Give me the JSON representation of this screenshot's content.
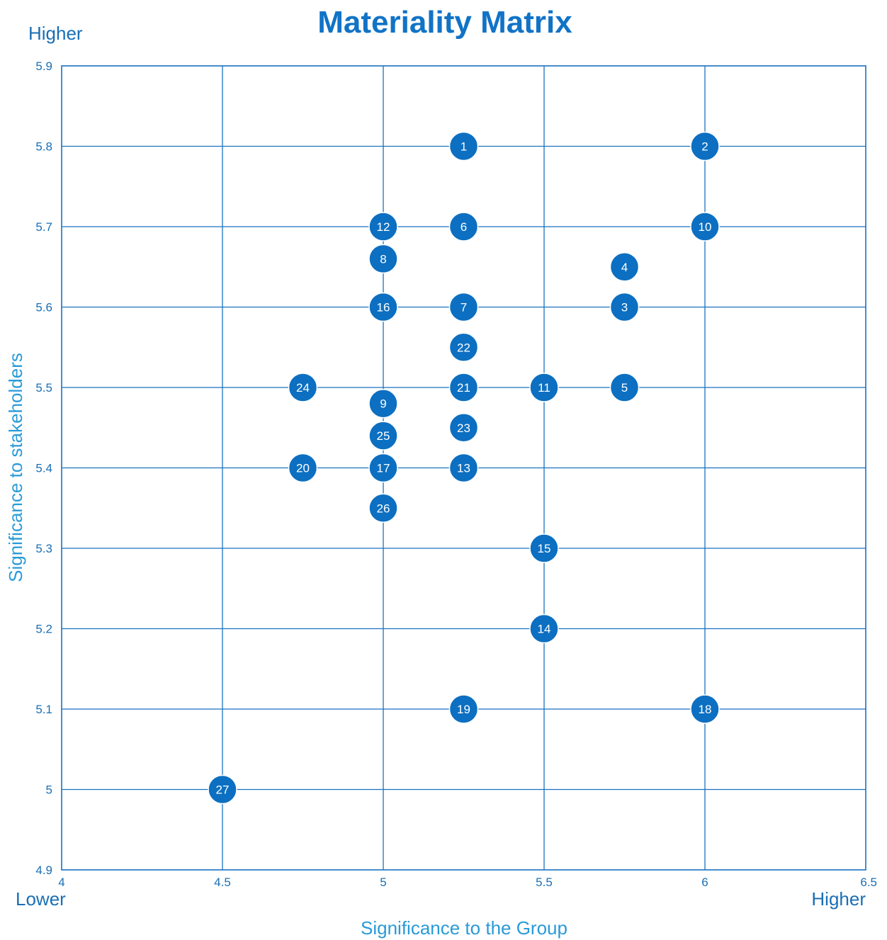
{
  "chart_data": {
    "type": "scatter",
    "title": "Materiality Matrix",
    "xlabel": "Significance to the Group",
    "ylabel": "Significance to stakeholders",
    "x_low_label": "Lower",
    "x_high_label": "Higher",
    "y_high_label": "Higher",
    "xlim": [
      4,
      6.5
    ],
    "ylim": [
      4.9,
      5.9
    ],
    "x_ticks": [
      "4",
      "4.5",
      "5",
      "5.5",
      "6",
      "6.5"
    ],
    "y_ticks": [
      "4.9",
      "5",
      "5.1",
      "5.2",
      "5.3",
      "5.4",
      "5.5",
      "5.6",
      "5.7",
      "5.8",
      "5.9"
    ],
    "grid": true,
    "colors": {
      "bubble": "#0c6fc1",
      "grid": "#1a72c0",
      "title": "#1173c6",
      "axis_title": "#2a9ad8"
    },
    "points": [
      {
        "label": "1",
        "x": 5.25,
        "y": 5.8
      },
      {
        "label": "2",
        "x": 6.0,
        "y": 5.8
      },
      {
        "label": "3",
        "x": 5.75,
        "y": 5.6
      },
      {
        "label": "4",
        "x": 5.75,
        "y": 5.65
      },
      {
        "label": "5",
        "x": 5.75,
        "y": 5.5
      },
      {
        "label": "6",
        "x": 5.25,
        "y": 5.7
      },
      {
        "label": "7",
        "x": 5.25,
        "y": 5.6
      },
      {
        "label": "8",
        "x": 5.0,
        "y": 5.66
      },
      {
        "label": "9",
        "x": 5.0,
        "y": 5.48
      },
      {
        "label": "10",
        "x": 6.0,
        "y": 5.7
      },
      {
        "label": "11",
        "x": 5.5,
        "y": 5.5
      },
      {
        "label": "12",
        "x": 5.0,
        "y": 5.7
      },
      {
        "label": "13",
        "x": 5.25,
        "y": 5.4
      },
      {
        "label": "14",
        "x": 5.5,
        "y": 5.2
      },
      {
        "label": "15",
        "x": 5.5,
        "y": 5.3
      },
      {
        "label": "16",
        "x": 5.0,
        "y": 5.6
      },
      {
        "label": "17",
        "x": 5.0,
        "y": 5.4
      },
      {
        "label": "18",
        "x": 6.0,
        "y": 5.1
      },
      {
        "label": "19",
        "x": 5.25,
        "y": 5.1
      },
      {
        "label": "20",
        "x": 4.75,
        "y": 5.4
      },
      {
        "label": "21",
        "x": 5.25,
        "y": 5.5
      },
      {
        "label": "22",
        "x": 5.25,
        "y": 5.55
      },
      {
        "label": "23",
        "x": 5.25,
        "y": 5.45
      },
      {
        "label": "24",
        "x": 4.75,
        "y": 5.5
      },
      {
        "label": "25",
        "x": 5.0,
        "y": 5.44
      },
      {
        "label": "26",
        "x": 5.0,
        "y": 5.35
      },
      {
        "label": "27",
        "x": 4.5,
        "y": 5.0
      }
    ]
  }
}
